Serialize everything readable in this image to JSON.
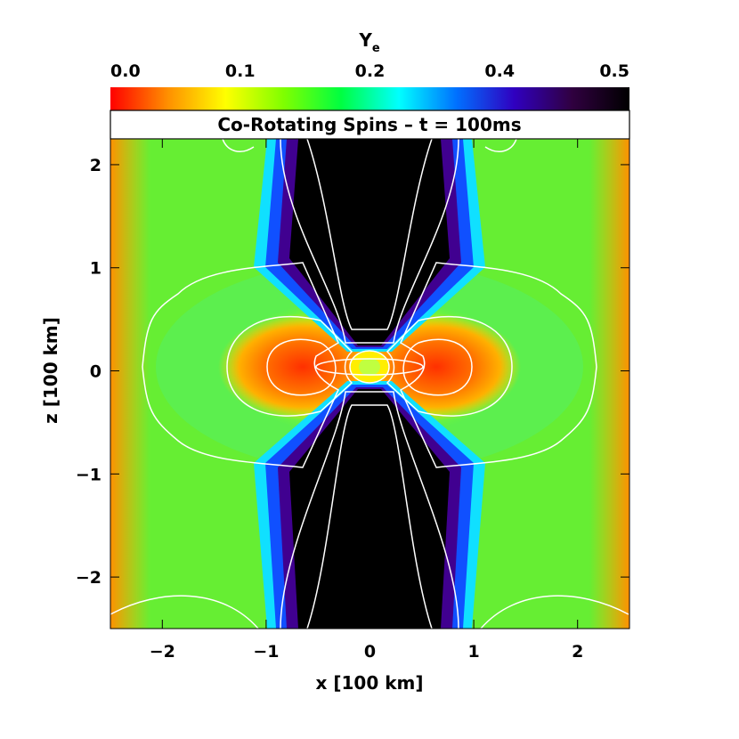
{
  "chart_data": {
    "type": "heatmap",
    "title": "Co-Rotating Spins – t = 100ms",
    "colorbar": {
      "label": "Y",
      "label_subscript": "e",
      "range": [
        0.0,
        0.5
      ],
      "ticks": [
        "0.0",
        "0.1",
        "0.2",
        "0.4",
        "0.5"
      ],
      "colors": [
        "#ff0000",
        "#ff9000",
        "#ffff00",
        "#80ff00",
        "#00ff40",
        "#00ffff",
        "#0070ff",
        "#3000c0",
        "#300040",
        "#000000"
      ]
    },
    "xlabel": "x [100 km]",
    "ylabel": "z [100 km]",
    "xlim": [
      -2.5,
      2.5
    ],
    "ylim": [
      -2.5,
      2.25
    ],
    "xticks": [
      -2,
      -1,
      0,
      1,
      2
    ],
    "yticks": [
      -2,
      -1,
      0,
      1,
      2
    ],
    "xticklabels": [
      "−2",
      "−1",
      "0",
      "1",
      "2"
    ],
    "yticklabels": [
      "−2",
      "−1",
      "0",
      "1",
      "2"
    ],
    "regions": [
      {
        "name": "polar funnel",
        "ye": 0.5
      },
      {
        "name": "equatorial torus",
        "ye": 0.03
      },
      {
        "name": "outer ejecta",
        "ye": 0.13
      }
    ]
  }
}
